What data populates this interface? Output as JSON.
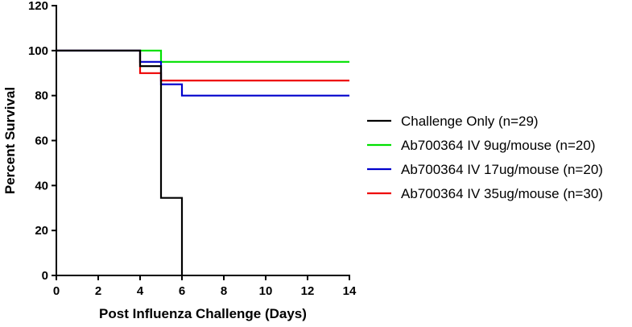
{
  "chart_data": {
    "type": "line",
    "step": true,
    "xlabel": "Post Influenza Challenge (Days)",
    "ylabel": "Percent Survival",
    "xlim": [
      0,
      14
    ],
    "ylim": [
      0,
      120
    ],
    "xticks": [
      "0",
      "2",
      "4",
      "6",
      "8",
      "10",
      "12",
      "14"
    ],
    "yticks": [
      "0",
      "20",
      "40",
      "60",
      "80",
      "100",
      "120"
    ],
    "grid": false,
    "legend_position": "right",
    "series": [
      {
        "name": "Challenge Only (n=29)",
        "color": "#000000",
        "points": [
          [
            0,
            100
          ],
          [
            4,
            100
          ],
          [
            4,
            93.1
          ],
          [
            5,
            93.1
          ],
          [
            5,
            34.5
          ],
          [
            6,
            34.5
          ],
          [
            6,
            0
          ]
        ]
      },
      {
        "name": "Ab700364 IV 9ug/mouse (n=20)",
        "color": "#00e000",
        "points": [
          [
            0,
            100
          ],
          [
            5,
            100
          ],
          [
            5,
            95
          ],
          [
            14,
            95
          ]
        ]
      },
      {
        "name": "Ab700364 IV 17ug/mouse (n=20)",
        "color": "#0000cc",
        "points": [
          [
            0,
            100
          ],
          [
            4,
            100
          ],
          [
            4,
            95
          ],
          [
            5,
            95
          ],
          [
            5,
            85
          ],
          [
            6,
            85
          ],
          [
            6,
            80
          ],
          [
            14,
            80
          ]
        ]
      },
      {
        "name": "Ab700364 IV 35ug/mouse (n=30)",
        "color": "#ee0000",
        "points": [
          [
            0,
            100
          ],
          [
            4,
            100
          ],
          [
            4,
            90
          ],
          [
            5,
            90
          ],
          [
            5,
            86.7
          ],
          [
            14,
            86.7
          ]
        ]
      }
    ]
  }
}
